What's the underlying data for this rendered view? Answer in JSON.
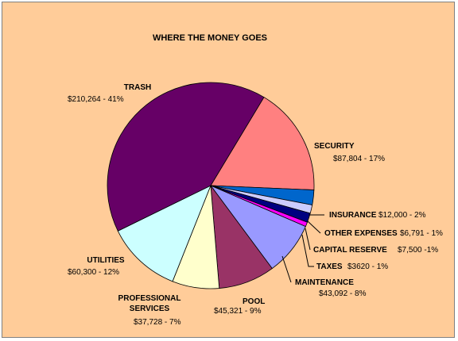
{
  "chart_data": {
    "type": "pie",
    "title": "WHERE THE MONEY GOES",
    "slices": [
      {
        "name": "SECURITY",
        "name_lines": [
          "SECURITY"
        ],
        "value": 87804,
        "label": "$87,804 - 17%",
        "color": "#ff8080"
      },
      {
        "name": "INSURANCE",
        "name_lines": [
          "INSURANCE"
        ],
        "value": 12000,
        "label": "$12,000 - 2%",
        "color": "#0066cc"
      },
      {
        "name": "OTHER EXPENSES",
        "name_lines": [
          "OTHER EXPENSES"
        ],
        "value": 6791,
        "label": "$6,791 - 1%",
        "color": "#ccccff"
      },
      {
        "name": "CAPITAL RESERVE",
        "name_lines": [
          "CAPITAL RESERVE"
        ],
        "value": 7500,
        "label": "$7,500 -1%",
        "color": "#000080"
      },
      {
        "name": "TAXES",
        "name_lines": [
          "TAXES"
        ],
        "value": 3620,
        "label": "$3620 - 1%",
        "color": "#ff00ff"
      },
      {
        "name": "MAINTENANCE",
        "name_lines": [
          "MAINTENANCE"
        ],
        "value": 43092,
        "label": "$43,092 - 8%",
        "color": "#9999ff"
      },
      {
        "name": "POOL",
        "name_lines": [
          "POOL"
        ],
        "value": 45321,
        "label": "$45,321 - 9%",
        "color": "#993366"
      },
      {
        "name": "PROFESSIONAL SERVICES",
        "name_lines": [
          "PROFESSIONAL",
          "SERVICES"
        ],
        "value": 37728,
        "label": "$37,728 - 7%",
        "color": "#ffffcc"
      },
      {
        "name": "UTILITIES",
        "name_lines": [
          "UTILITIES"
        ],
        "value": 60300,
        "label": "$60,300 - 12%",
        "color": "#ccffff"
      },
      {
        "name": "TRASH",
        "name_lines": [
          "TRASH"
        ],
        "value": 210264,
        "label": "$210,264 - 41%",
        "color": "#660066"
      }
    ],
    "background": "#ffcc99",
    "legend": "none"
  }
}
